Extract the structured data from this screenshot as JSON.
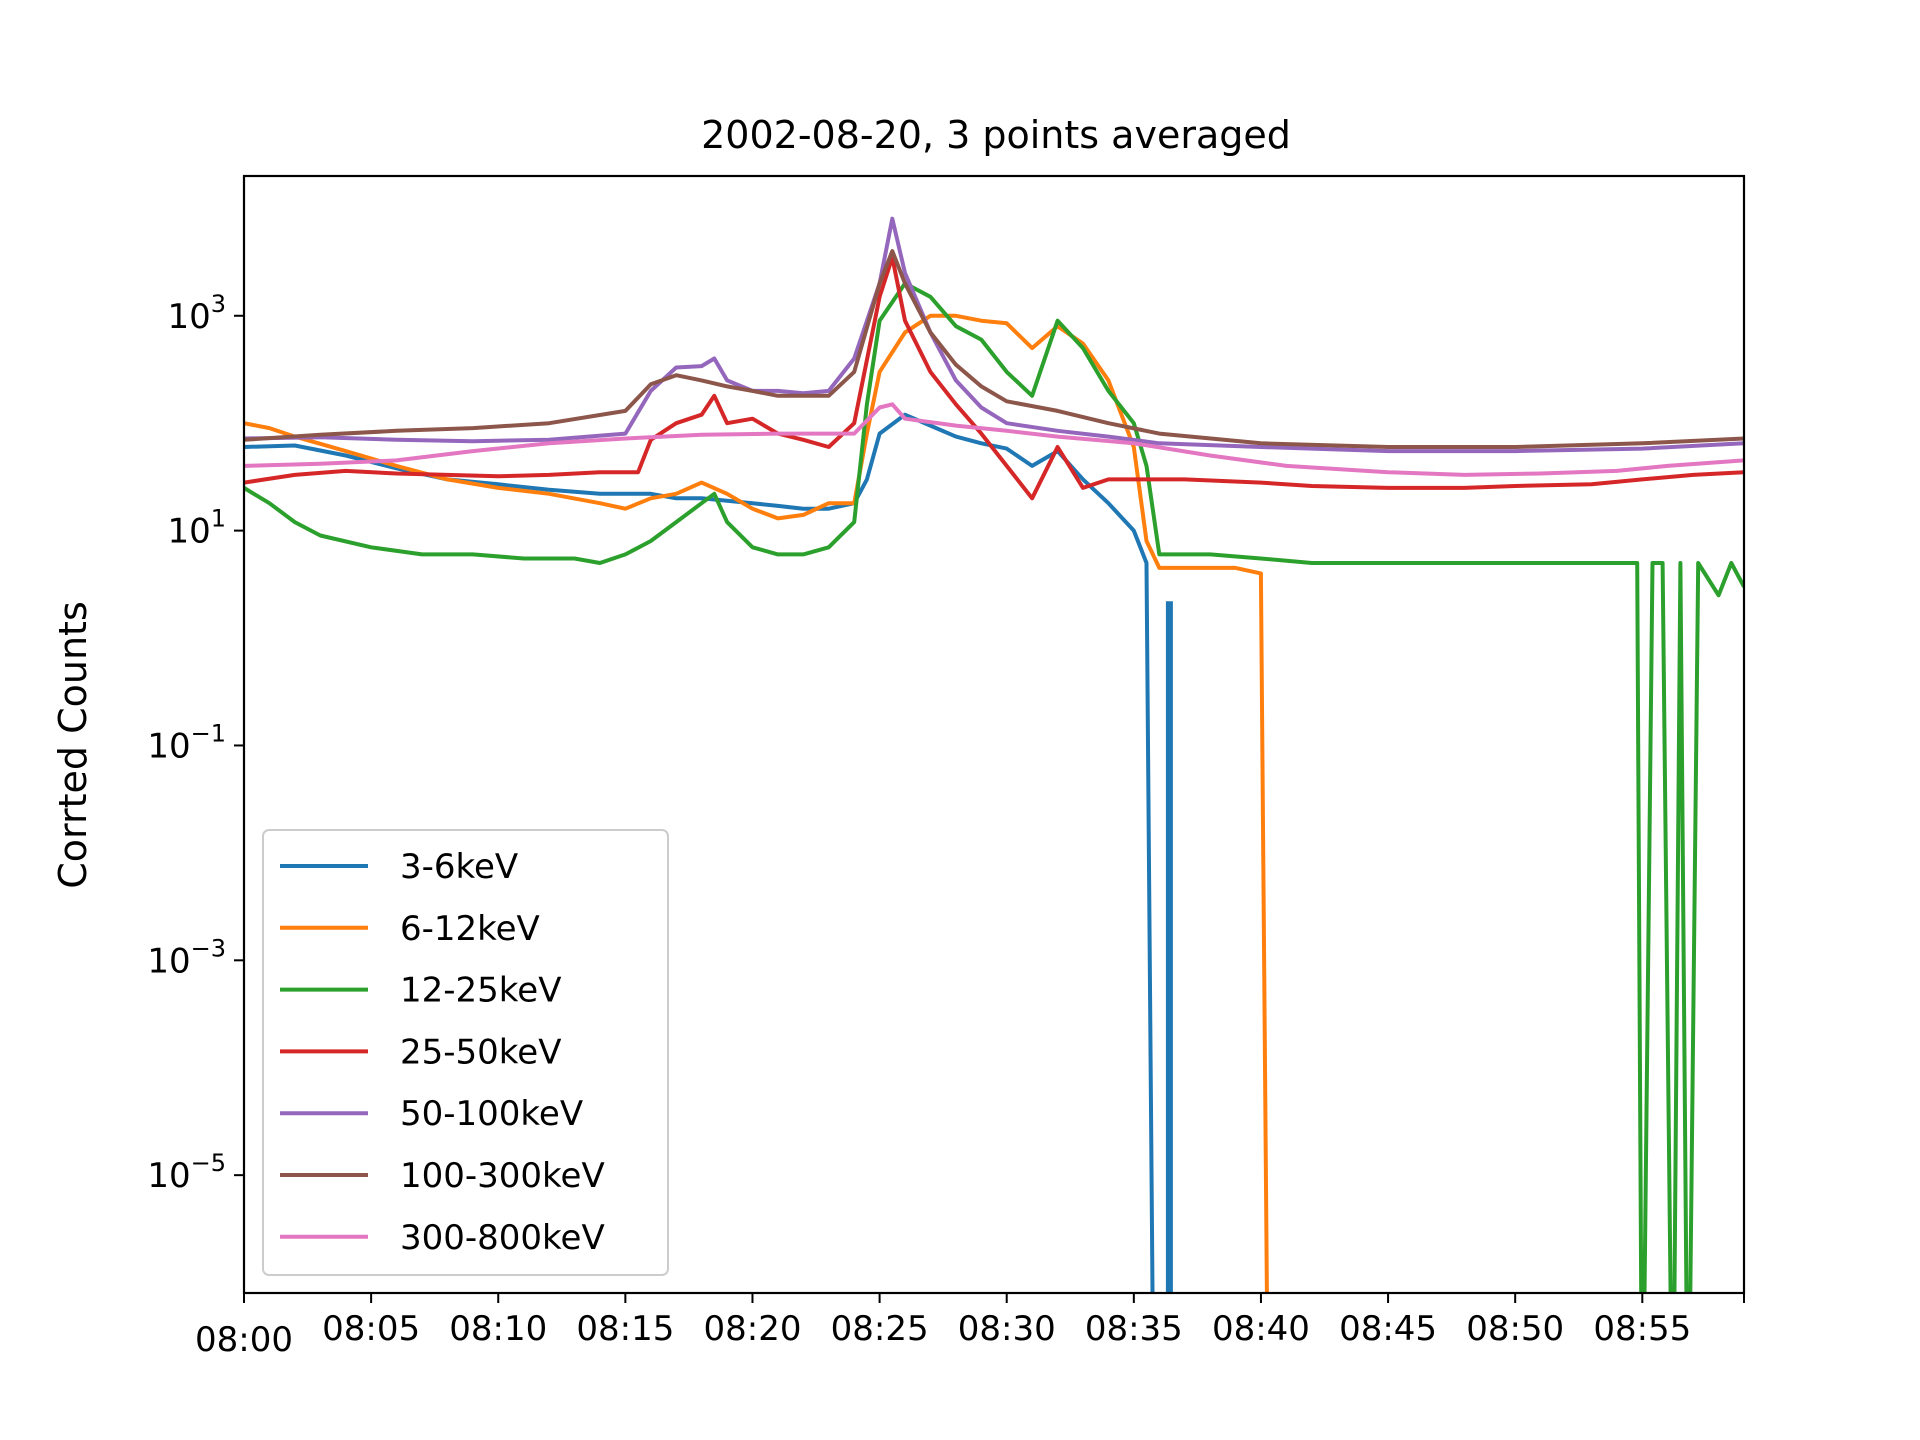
{
  "chart_data": {
    "type": "line",
    "title": "2002-08-20, 3 points averaged",
    "xlabel": "",
    "ylabel": "Corrted Counts",
    "y_scale": "log",
    "ylim": [
      8e-07,
      20000
    ],
    "xlim": [
      "08:00",
      "08:59"
    ],
    "x_ticks": [
      "08:00",
      "08:05",
      "08:10",
      "08:15",
      "08:20",
      "08:25",
      "08:30",
      "08:35",
      "08:40",
      "08:45",
      "08:50",
      "08:55"
    ],
    "y_ticks": [
      {
        "base": "10",
        "exp": "3",
        "value": 1000
      },
      {
        "base": "10",
        "exp": "1",
        "value": 10
      },
      {
        "base": "10",
        "exp": "−1",
        "value": 0.1
      },
      {
        "base": "10",
        "exp": "−3",
        "value": 0.001
      },
      {
        "base": "10",
        "exp": "−5",
        "value": 1e-05
      }
    ],
    "legend_position": "lower-left",
    "grid": false,
    "series": [
      {
        "name": "3-6keV",
        "color": "#1f77b4",
        "points": [
          [
            "08:00",
            60
          ],
          [
            "08:02",
            62
          ],
          [
            "08:04",
            50
          ],
          [
            "08:06",
            38
          ],
          [
            "08:08",
            30
          ],
          [
            "08:10",
            27
          ],
          [
            "08:12",
            24
          ],
          [
            "08:14",
            22
          ],
          [
            "08:15",
            22
          ],
          [
            "08:16",
            22
          ],
          [
            "08:17",
            20
          ],
          [
            "08:18",
            20
          ],
          [
            "08:19",
            19
          ],
          [
            "08:20",
            18
          ],
          [
            "08:21",
            17
          ],
          [
            "08:22",
            16
          ],
          [
            "08:23",
            16
          ],
          [
            "08:24",
            18
          ],
          [
            "08:24.5",
            30
          ],
          [
            "08:25",
            80
          ],
          [
            "08:26",
            120
          ],
          [
            "08:27",
            95
          ],
          [
            "08:28",
            75
          ],
          [
            "08:29",
            65
          ],
          [
            "08:30",
            58
          ],
          [
            "08:31",
            40
          ],
          [
            "08:32",
            55
          ],
          [
            "08:33",
            30
          ],
          [
            "08:34",
            18
          ],
          [
            "08:35",
            10
          ],
          [
            "08:35.5",
            5
          ],
          [
            "08:35.8",
            1e-08
          ]
        ],
        "segments": [
          [
            [
              "08:36.4",
              2.2
            ],
            [
              "08:36.4",
              1e-08
            ]
          ]
        ]
      },
      {
        "name": "6-12keV",
        "color": "#ff7f0e",
        "points": [
          [
            "08:00",
            100
          ],
          [
            "08:01",
            90
          ],
          [
            "08:02",
            75
          ],
          [
            "08:04",
            55
          ],
          [
            "08:06",
            40
          ],
          [
            "08:08",
            30
          ],
          [
            "08:10",
            25
          ],
          [
            "08:12",
            22
          ],
          [
            "08:14",
            18
          ],
          [
            "08:15",
            16
          ],
          [
            "08:16",
            20
          ],
          [
            "08:17",
            22
          ],
          [
            "08:18",
            28
          ],
          [
            "08:19",
            22
          ],
          [
            "08:20",
            16
          ],
          [
            "08:21",
            13
          ],
          [
            "08:22",
            14
          ],
          [
            "08:23",
            18
          ],
          [
            "08:24",
            18
          ],
          [
            "08:24.5",
            80
          ],
          [
            "08:25",
            300
          ],
          [
            "08:26",
            700
          ],
          [
            "08:27",
            1000
          ],
          [
            "08:28",
            1000
          ],
          [
            "08:29",
            900
          ],
          [
            "08:30",
            850
          ],
          [
            "08:31",
            500
          ],
          [
            "08:32",
            800
          ],
          [
            "08:33",
            550
          ],
          [
            "08:34",
            250
          ],
          [
            "08:35",
            60
          ],
          [
            "08:35.5",
            8
          ],
          [
            "08:36",
            4.5
          ],
          [
            "08:38",
            4.5
          ],
          [
            "08:39",
            4.5
          ],
          [
            "08:40",
            4
          ],
          [
            "08:40.3",
            1e-08
          ]
        ]
      },
      {
        "name": "12-25keV",
        "color": "#2ca02c",
        "points": [
          [
            "08:00",
            25
          ],
          [
            "08:01",
            18
          ],
          [
            "08:02",
            12
          ],
          [
            "08:03",
            9
          ],
          [
            "08:05",
            7
          ],
          [
            "08:07",
            6
          ],
          [
            "08:09",
            6
          ],
          [
            "08:11",
            5.5
          ],
          [
            "08:13",
            5.5
          ],
          [
            "08:14",
            5
          ],
          [
            "08:15",
            6
          ],
          [
            "08:16",
            8
          ],
          [
            "08:17",
            12
          ],
          [
            "08:18",
            18
          ],
          [
            "08:18.5",
            22
          ],
          [
            "08:19",
            12
          ],
          [
            "08:20",
            7
          ],
          [
            "08:21",
            6
          ],
          [
            "08:22",
            6
          ],
          [
            "08:23",
            7
          ],
          [
            "08:24",
            12
          ],
          [
            "08:24.5",
            150
          ],
          [
            "08:25",
            900
          ],
          [
            "08:26",
            2000
          ],
          [
            "08:27",
            1500
          ],
          [
            "08:28",
            800
          ],
          [
            "08:29",
            600
          ],
          [
            "08:30",
            300
          ],
          [
            "08:31",
            180
          ],
          [
            "08:32",
            900
          ],
          [
            "08:33",
            500
          ],
          [
            "08:34",
            200
          ],
          [
            "08:35",
            100
          ],
          [
            "08:35.5",
            40
          ],
          [
            "08:36",
            6
          ],
          [
            "08:38",
            6
          ],
          [
            "08:40",
            5.5
          ],
          [
            "08:42",
            5
          ],
          [
            "08:45",
            5
          ],
          [
            "08:48",
            5
          ],
          [
            "08:50",
            5
          ],
          [
            "08:52",
            5
          ],
          [
            "08:54",
            5
          ],
          [
            "08:54.8",
            5
          ],
          [
            "08:55",
            1e-08
          ],
          [
            "08:55.4",
            5
          ],
          [
            "08:55.8",
            5
          ],
          [
            "08:56.2",
            1e-08
          ],
          [
            "08:56.5",
            5
          ],
          [
            "08:56.8",
            1e-08
          ],
          [
            "08:57.2",
            5
          ],
          [
            "08:58",
            2.5
          ],
          [
            "08:58.5",
            5
          ],
          [
            "08:59",
            3
          ]
        ]
      },
      {
        "name": "25-50keV",
        "color": "#d62728",
        "points": [
          [
            "08:00",
            28
          ],
          [
            "08:02",
            33
          ],
          [
            "08:04",
            36
          ],
          [
            "08:06",
            34
          ],
          [
            "08:08",
            33
          ],
          [
            "08:10",
            32
          ],
          [
            "08:12",
            33
          ],
          [
            "08:14",
            35
          ],
          [
            "08:15.5",
            35
          ],
          [
            "08:16",
            70
          ],
          [
            "08:17",
            100
          ],
          [
            "08:18",
            120
          ],
          [
            "08:18.5",
            180
          ],
          [
            "08:19",
            100
          ],
          [
            "08:20",
            110
          ],
          [
            "08:21",
            80
          ],
          [
            "08:22",
            70
          ],
          [
            "08:23",
            60
          ],
          [
            "08:24",
            100
          ],
          [
            "08:25",
            1500
          ],
          [
            "08:25.5",
            3500
          ],
          [
            "08:26",
            900
          ],
          [
            "08:27",
            300
          ],
          [
            "08:28",
            150
          ],
          [
            "08:29",
            80
          ],
          [
            "08:30",
            40
          ],
          [
            "08:31",
            20
          ],
          [
            "08:32",
            60
          ],
          [
            "08:33",
            25
          ],
          [
            "08:34",
            30
          ],
          [
            "08:35",
            30
          ],
          [
            "08:37",
            30
          ],
          [
            "08:40",
            28
          ],
          [
            "08:42",
            26
          ],
          [
            "08:45",
            25
          ],
          [
            "08:48",
            25
          ],
          [
            "08:50",
            26
          ],
          [
            "08:53",
            27
          ],
          [
            "08:55",
            30
          ],
          [
            "08:57",
            33
          ],
          [
            "08:59",
            35
          ]
        ]
      },
      {
        "name": "50-100keV",
        "color": "#9467bd",
        "points": [
          [
            "08:00",
            72
          ],
          [
            "08:03",
            74
          ],
          [
            "08:06",
            70
          ],
          [
            "08:09",
            68
          ],
          [
            "08:12",
            70
          ],
          [
            "08:15",
            80
          ],
          [
            "08:16",
            200
          ],
          [
            "08:17",
            330
          ],
          [
            "08:18",
            340
          ],
          [
            "08:18.5",
            400
          ],
          [
            "08:19",
            250
          ],
          [
            "08:20",
            200
          ],
          [
            "08:21",
            200
          ],
          [
            "08:22",
            190
          ],
          [
            "08:23",
            200
          ],
          [
            "08:24",
            400
          ],
          [
            "08:25",
            2000
          ],
          [
            "08:25.5",
            8000
          ],
          [
            "08:26",
            2500
          ],
          [
            "08:27",
            700
          ],
          [
            "08:28",
            250
          ],
          [
            "08:29",
            140
          ],
          [
            "08:30",
            100
          ],
          [
            "08:32",
            85
          ],
          [
            "08:34",
            75
          ],
          [
            "08:36",
            65
          ],
          [
            "08:40",
            60
          ],
          [
            "08:45",
            55
          ],
          [
            "08:50",
            55
          ],
          [
            "08:55",
            58
          ],
          [
            "08:59",
            65
          ]
        ]
      },
      {
        "name": "100-300keV",
        "color": "#8c564b",
        "points": [
          [
            "08:00",
            70
          ],
          [
            "08:03",
            78
          ],
          [
            "08:06",
            85
          ],
          [
            "08:09",
            90
          ],
          [
            "08:12",
            100
          ],
          [
            "08:15",
            130
          ],
          [
            "08:16",
            230
          ],
          [
            "08:17",
            280
          ],
          [
            "08:18",
            250
          ],
          [
            "08:19",
            220
          ],
          [
            "08:20",
            200
          ],
          [
            "08:21",
            180
          ],
          [
            "08:22",
            180
          ],
          [
            "08:23",
            180
          ],
          [
            "08:24",
            300
          ],
          [
            "08:25",
            2000
          ],
          [
            "08:25.5",
            4000
          ],
          [
            "08:26",
            2000
          ],
          [
            "08:27",
            700
          ],
          [
            "08:28",
            350
          ],
          [
            "08:29",
            220
          ],
          [
            "08:30",
            160
          ],
          [
            "08:32",
            130
          ],
          [
            "08:34",
            100
          ],
          [
            "08:36",
            80
          ],
          [
            "08:40",
            65
          ],
          [
            "08:45",
            60
          ],
          [
            "08:50",
            60
          ],
          [
            "08:55",
            65
          ],
          [
            "08:59",
            72
          ]
        ]
      },
      {
        "name": "300-800keV",
        "color": "#e377c2",
        "points": [
          [
            "08:00",
            40
          ],
          [
            "08:03",
            42
          ],
          [
            "08:06",
            45
          ],
          [
            "08:09",
            55
          ],
          [
            "08:12",
            65
          ],
          [
            "08:15",
            72
          ],
          [
            "08:18",
            78
          ],
          [
            "08:21",
            80
          ],
          [
            "08:24",
            80
          ],
          [
            "08:25",
            140
          ],
          [
            "08:25.5",
            150
          ],
          [
            "08:26",
            110
          ],
          [
            "08:28",
            95
          ],
          [
            "08:30",
            85
          ],
          [
            "08:32",
            75
          ],
          [
            "08:35",
            65
          ],
          [
            "08:38",
            50
          ],
          [
            "08:41",
            40
          ],
          [
            "08:45",
            35
          ],
          [
            "08:48",
            33
          ],
          [
            "08:51",
            34
          ],
          [
            "08:54",
            36
          ],
          [
            "08:56",
            40
          ],
          [
            "08:59",
            45
          ]
        ]
      }
    ]
  }
}
